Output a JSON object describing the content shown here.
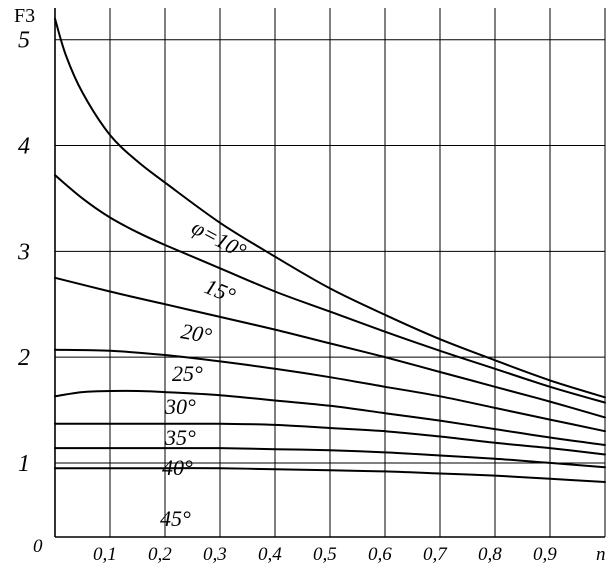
{
  "chart_data": {
    "type": "line",
    "title": "",
    "ylabel": "F3",
    "xlabel": "n",
    "xlim": [
      0,
      1.0
    ],
    "ylim": [
      0.3,
      5.3
    ],
    "x_ticks": [
      "0,1",
      "0,2",
      "0,3",
      "0,4",
      "0,5",
      "0,6",
      "0,7",
      "0,8",
      "0,9"
    ],
    "y_ticks": [
      "1",
      "2",
      "3",
      "4",
      "5"
    ],
    "origin_label": "0",
    "grid": true,
    "series": [
      {
        "label": "φ=10°",
        "x": [
          0,
          0.02,
          0.05,
          0.1,
          0.15,
          0.2,
          0.3,
          0.4,
          0.5,
          0.6,
          0.7,
          0.8,
          0.9,
          1.0
        ],
        "y": [
          5.2,
          4.85,
          4.5,
          4.1,
          3.85,
          3.65,
          3.27,
          2.95,
          2.65,
          2.4,
          2.17,
          1.97,
          1.78,
          1.62
        ]
      },
      {
        "label": "15°",
        "x": [
          0,
          0.05,
          0.1,
          0.15,
          0.2,
          0.3,
          0.4,
          0.5,
          0.6,
          0.7,
          0.8,
          0.9,
          1.0
        ],
        "y": [
          3.72,
          3.5,
          3.32,
          3.18,
          3.06,
          2.84,
          2.62,
          2.43,
          2.24,
          2.06,
          1.89,
          1.72,
          1.57
        ]
      },
      {
        "label": "20°",
        "x": [
          0,
          0.1,
          0.2,
          0.3,
          0.4,
          0.5,
          0.6,
          0.7,
          0.8,
          0.9,
          1.0
        ],
        "y": [
          2.75,
          2.62,
          2.5,
          2.38,
          2.26,
          2.13,
          2.0,
          1.86,
          1.72,
          1.58,
          1.43
        ]
      },
      {
        "label": "25°",
        "x": [
          0,
          0.1,
          0.2,
          0.3,
          0.4,
          0.5,
          0.6,
          0.7,
          0.8,
          0.9,
          1.0
        ],
        "y": [
          2.07,
          2.06,
          2.02,
          1.96,
          1.89,
          1.81,
          1.72,
          1.63,
          1.52,
          1.41,
          1.3
        ]
      },
      {
        "label": "30°",
        "x": [
          0,
          0.05,
          0.1,
          0.15,
          0.2,
          0.3,
          0.4,
          0.5,
          0.6,
          0.7,
          0.8,
          0.9,
          1.0
        ],
        "y": [
          1.63,
          1.67,
          1.68,
          1.68,
          1.67,
          1.64,
          1.59,
          1.54,
          1.47,
          1.4,
          1.32,
          1.24,
          1.17
        ]
      },
      {
        "label": "35°",
        "x": [
          0,
          0.1,
          0.2,
          0.3,
          0.4,
          0.5,
          0.6,
          0.7,
          0.8,
          0.9,
          1.0
        ],
        "y": [
          1.37,
          1.37,
          1.37,
          1.37,
          1.36,
          1.33,
          1.3,
          1.25,
          1.19,
          1.14,
          1.08
        ]
      },
      {
        "label": "40°",
        "x": [
          0,
          0.1,
          0.2,
          0.3,
          0.4,
          0.5,
          0.6,
          0.7,
          0.8,
          0.9,
          1.0
        ],
        "y": [
          1.14,
          1.14,
          1.14,
          1.14,
          1.13,
          1.12,
          1.1,
          1.07,
          1.04,
          1.0,
          0.96
        ]
      },
      {
        "label": "45°",
        "x": [
          0,
          0.1,
          0.2,
          0.3,
          0.4,
          0.5,
          0.6,
          0.7,
          0.8,
          0.9,
          1.0
        ],
        "y": [
          0.95,
          0.95,
          0.95,
          0.95,
          0.94,
          0.93,
          0.92,
          0.9,
          0.88,
          0.85,
          0.82
        ]
      }
    ]
  }
}
